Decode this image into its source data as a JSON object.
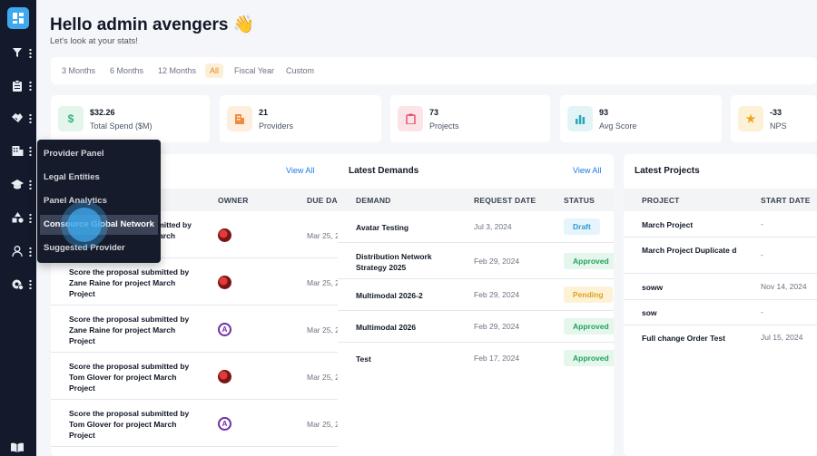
{
  "sidebar": {
    "nav_icons": [
      "filter-icon",
      "clipboard-icon",
      "handshake-icon",
      "building-icon",
      "graduation-cap-icon",
      "shapes-icon",
      "user-icon",
      "settings-icon"
    ],
    "bottom_icon": "book-icon"
  },
  "header": {
    "greeting": "Hello admin avengers 👋",
    "subtitle": "Let's look at your stats!"
  },
  "range": {
    "options": [
      "3 Months",
      "6 Months",
      "12 Months",
      "All",
      "Fiscal Year",
      "Custom"
    ],
    "selected": "All"
  },
  "stats": [
    {
      "value": "$32.26",
      "label": "Total Spend ($M)",
      "icon": "dollar-icon",
      "color": "#2fb47d",
      "bg": "#e4f5ec"
    },
    {
      "value": "21",
      "label": "Providers",
      "icon": "building-icon",
      "color": "#f08a3c",
      "bg": "#fdeede"
    },
    {
      "value": "73",
      "label": "Projects",
      "icon": "clipboard-icon",
      "color": "#e44b6b",
      "bg": "#fbe3e8"
    },
    {
      "value": "93",
      "label": "Avg Score",
      "icon": "bar-chart-icon",
      "color": "#2aa7b7",
      "bg": "#e2f4f6"
    },
    {
      "value": "-33",
      "label": "NPS",
      "icon": "star-icon",
      "color": "#f0a31d",
      "bg": "#fdf2d8"
    }
  ],
  "tasks": {
    "view_all": "View All",
    "columns": [
      "OWNER",
      "DUE DA"
    ],
    "rows": [
      {
        "task": "Score the proposal submitted by Zane Raine for project March Project",
        "owner": "red",
        "due": "Mar 25, 2"
      },
      {
        "task": "Score the proposal submitted by Zane Raine for project March Project",
        "owner": "red",
        "due": "Mar 25, 2"
      },
      {
        "task": "Score the proposal submitted by Zane Raine for project March Project",
        "owner": "av",
        "due": "Mar 25, 2"
      },
      {
        "task": "Score the proposal submitted by Tom Glover for project March Project",
        "owner": "red",
        "due": "Mar 25, 2"
      },
      {
        "task": "Score the proposal submitted by Tom Glover for project March Project",
        "owner": "av",
        "due": "Mar 25, 2"
      }
    ],
    "first_row_visible_fragments": [
      "bmitted by",
      "March"
    ]
  },
  "demands": {
    "title": "Latest Demands",
    "view_all": "View All",
    "columns": [
      "DEMAND",
      "REQUEST DATE",
      "STATUS"
    ],
    "rows": [
      {
        "name": "Avatar Testing",
        "date": "Jul 3, 2024",
        "status": "Draft",
        "kind": "draft"
      },
      {
        "name": "Distribution Network Strategy 2025",
        "date": "Feb 29, 2024",
        "status": "Approved",
        "kind": "approved"
      },
      {
        "name": "Multimodal 2026-2",
        "date": "Feb 29, 2024",
        "status": "Pending",
        "kind": "pending"
      },
      {
        "name": "Multimodal 2026",
        "date": "Feb 29, 2024",
        "status": "Approved",
        "kind": "approved"
      },
      {
        "name": "Test",
        "date": "Feb 17, 2024",
        "status": "Approved",
        "kind": "approved"
      }
    ]
  },
  "projects": {
    "title": "Latest Projects",
    "columns": [
      "PROJECT",
      "START DATE"
    ],
    "rows": [
      {
        "name": "March Project",
        "date": "-"
      },
      {
        "name": "March Project Duplicate d",
        "date": "-"
      },
      {
        "name": "soww",
        "date": "Nov 14, 2024"
      },
      {
        "name": "sow",
        "date": "-"
      },
      {
        "name": "Full change Order Test",
        "date": "Jul 15, 2024"
      }
    ]
  },
  "flyout": {
    "items": [
      "Provider Panel",
      "Legal Entities",
      "Panel Analytics",
      "Consource Global Network",
      "Suggested Provider"
    ],
    "active": "Consource Global Network"
  }
}
